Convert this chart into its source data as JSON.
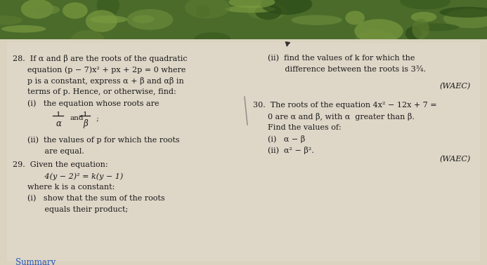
{
  "figsize": [
    6.93,
    3.78
  ],
  "dpi": 100,
  "bg_top_color": "#5a7a3a",
  "page_color": "#e8e0d0",
  "page_color2": "#ddd5c5",
  "text_color": "#1a1a1a",
  "fs": 8.0,
  "left": {
    "q28_l1": "28.  If α and β are the roots of the quadratic",
    "q28_l2": "      equation (p − 7)x² + px + 2p = 0 where",
    "q28_l3": "      p is a constant, express α + β and αβ in",
    "q28_l4": "      terms of p. Hence, or otherwise, find:",
    "q28_i": "      (i)   the equation whose roots are",
    "q28_ii": "      (ii)  the values of p for which the roots",
    "q28_ii2": "             are equal.",
    "q29_h": "29.  Given the equation:",
    "q29_eq": "             4(y − 2)² = k(y − 1)",
    "q29_wh": "      where k is a constant:",
    "q29_i": "      (i)   show that the sum of the roots",
    "q29_i2": "             equals their product;"
  },
  "right": {
    "r_l1": "      (ii)  find the values of k for which the",
    "r_l2": "             difference between the roots is 3¾.",
    "waec1": "(WAEC)",
    "q30_l1": "30.  The roots of the equation 4x² − 12x + 7 =",
    "q30_l2": "      0 are α and β, with α  greater than β.",
    "q30_l3": "      Find the values of:",
    "q30_i": "      (i)   α − β",
    "q30_ii": "      (ii)  α² − β².",
    "waec2": "(WAEC)"
  }
}
